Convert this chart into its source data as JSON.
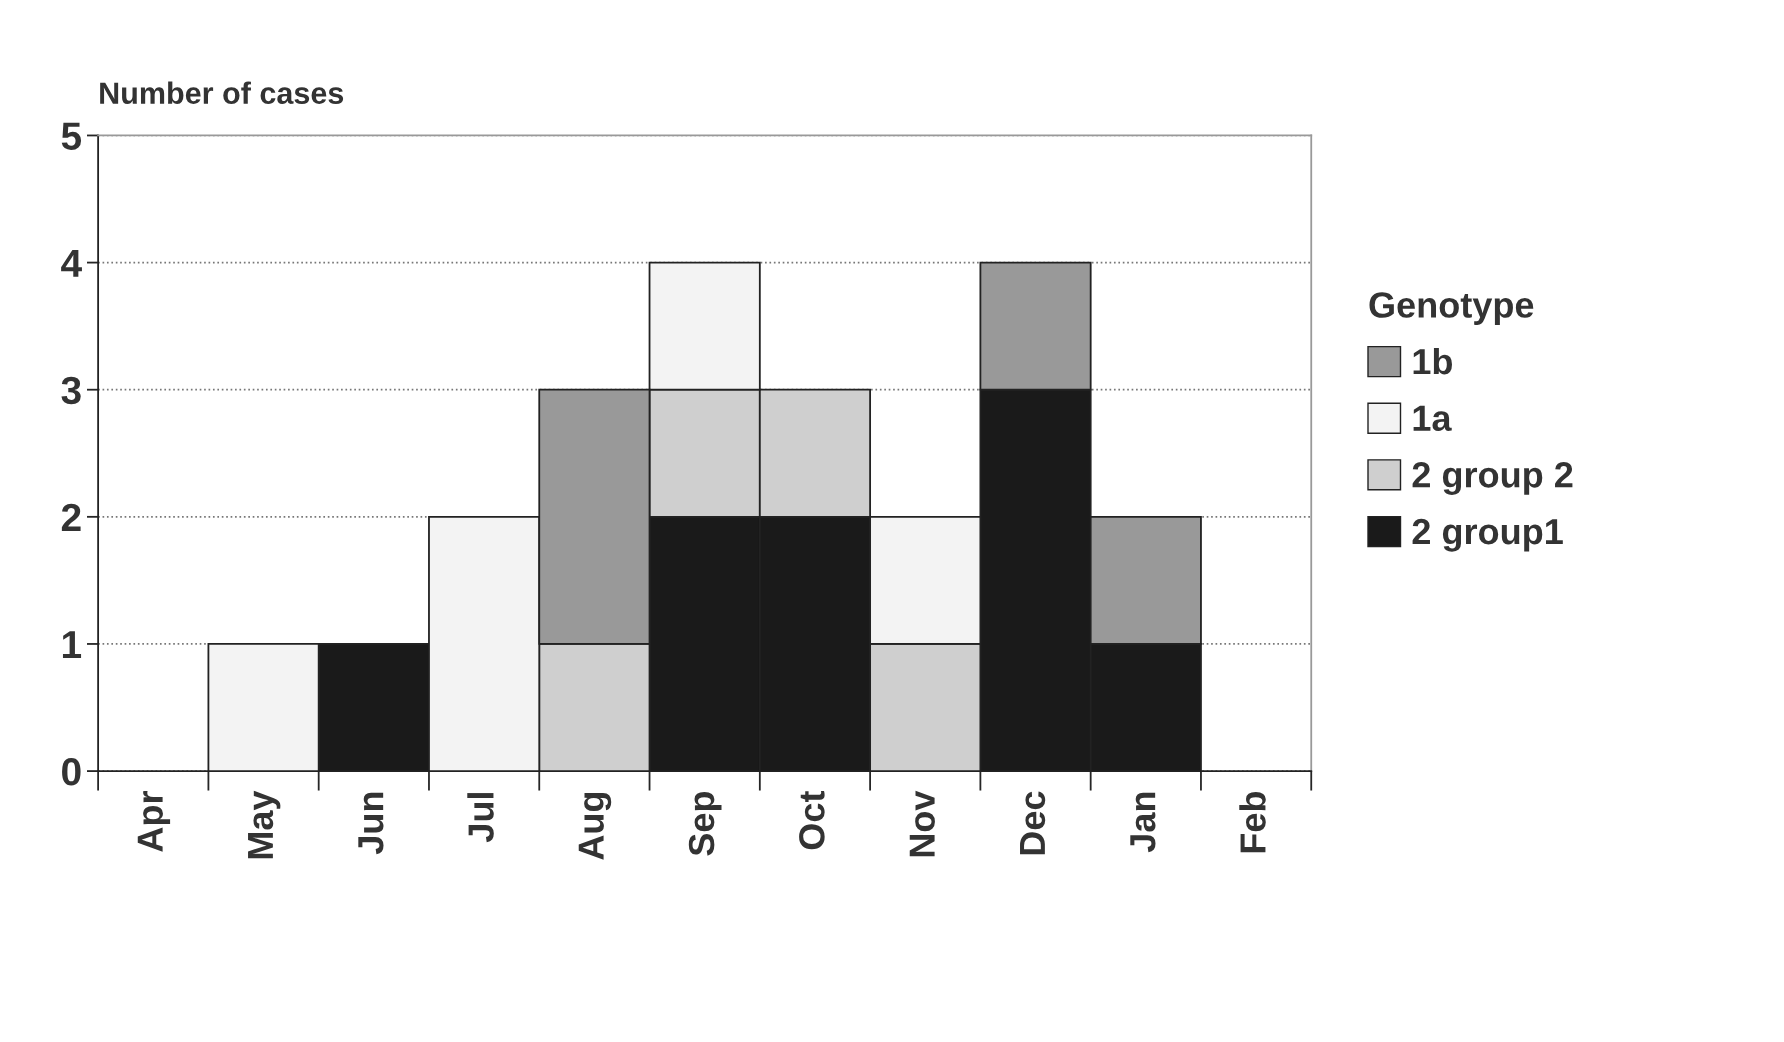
{
  "chart_data": {
    "type": "bar",
    "stacked": true,
    "ylabel": "Number of cases",
    "legend_title": "Genotype",
    "legend": "right",
    "grid": "y",
    "line_style": "dotted",
    "categories": [
      "Apr",
      "May",
      "Jun",
      "Jul",
      "Aug",
      "Sep",
      "Oct",
      "Nov",
      "Dec",
      "Jan",
      "Feb"
    ],
    "ylim": [
      0,
      5
    ],
    "yticks": [
      0,
      1,
      2,
      3,
      4,
      5
    ],
    "series": [
      {
        "name": "2 group1",
        "color": "#1a1a1a",
        "values": [
          null,
          null,
          1,
          null,
          null,
          2,
          2,
          null,
          3,
          1,
          null
        ]
      },
      {
        "name": "2 group 2",
        "color": "#cfcfcf",
        "values": [
          null,
          null,
          null,
          null,
          1,
          1,
          1,
          1,
          null,
          null,
          null
        ]
      },
      {
        "name": "1a",
        "color": "#f3f3f3",
        "values": [
          null,
          1,
          null,
          2,
          null,
          1,
          null,
          1,
          null,
          null,
          null
        ]
      },
      {
        "name": "1b",
        "color": "#999999",
        "values": [
          null,
          null,
          null,
          null,
          2,
          null,
          null,
          null,
          1,
          1,
          null
        ]
      }
    ]
  }
}
